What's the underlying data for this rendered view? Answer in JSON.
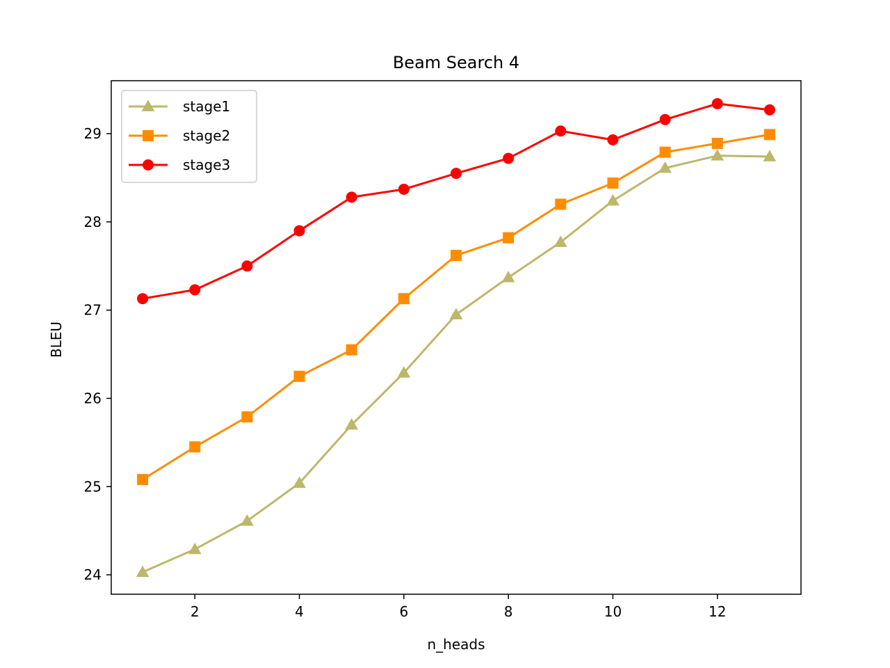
{
  "chart_data": {
    "type": "line",
    "title": "Beam Search 4",
    "xlabel": "n_heads",
    "ylabel": "BLEU",
    "xlim": [
      0.4,
      13.6
    ],
    "ylim": [
      23.78,
      29.6
    ],
    "xticks": [
      2,
      4,
      6,
      8,
      10,
      12
    ],
    "yticks": [
      24,
      25,
      26,
      27,
      28,
      29
    ],
    "legend_position": "upper-left",
    "grid": false,
    "x": [
      1,
      2,
      3,
      4,
      5,
      6,
      7,
      8,
      9,
      10,
      11,
      12,
      13
    ],
    "series": [
      {
        "name": "stage1",
        "color": "#bdb76b",
        "marker": "triangle",
        "values": [
          24.03,
          24.29,
          24.61,
          25.04,
          25.7,
          26.29,
          26.95,
          27.37,
          27.77,
          28.24,
          28.61,
          28.75,
          28.74
        ]
      },
      {
        "name": "stage2",
        "color": "#ff8c00",
        "marker": "square",
        "values": [
          25.08,
          25.45,
          25.79,
          26.25,
          26.55,
          27.13,
          27.62,
          27.82,
          28.2,
          28.44,
          28.79,
          28.89,
          28.99
        ]
      },
      {
        "name": "stage3",
        "color": "#ff0000",
        "marker": "circle",
        "values": [
          27.13,
          27.23,
          27.5,
          27.9,
          28.28,
          28.37,
          28.55,
          28.72,
          29.03,
          28.93,
          29.16,
          29.34,
          29.27
        ]
      }
    ]
  }
}
